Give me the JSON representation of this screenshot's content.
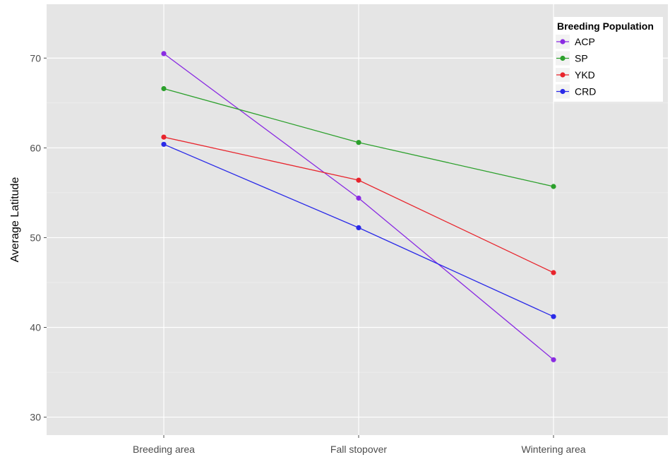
{
  "chart_data": {
    "type": "line",
    "title": "",
    "xlabel": "",
    "ylabel": "Average Latitude",
    "categories": [
      "Breeding area",
      "Fall stopover",
      "Wintering area"
    ],
    "ylim": [
      28,
      76
    ],
    "yticks": [
      30,
      40,
      50,
      60,
      70
    ],
    "grid": true,
    "legend": {
      "title": "Breeding Population",
      "position": "top-right"
    },
    "series": [
      {
        "name": "ACP",
        "color": "#8a2be2",
        "values": [
          70.5,
          54.4,
          36.4
        ]
      },
      {
        "name": "SP",
        "color": "#2ca02c",
        "values": [
          66.6,
          60.6,
          55.7
        ]
      },
      {
        "name": "YKD",
        "color": "#e8242c",
        "values": [
          61.2,
          56.4,
          46.1
        ]
      },
      {
        "name": "CRD",
        "color": "#2a2ae8",
        "values": [
          60.4,
          51.1,
          41.2
        ]
      }
    ]
  }
}
